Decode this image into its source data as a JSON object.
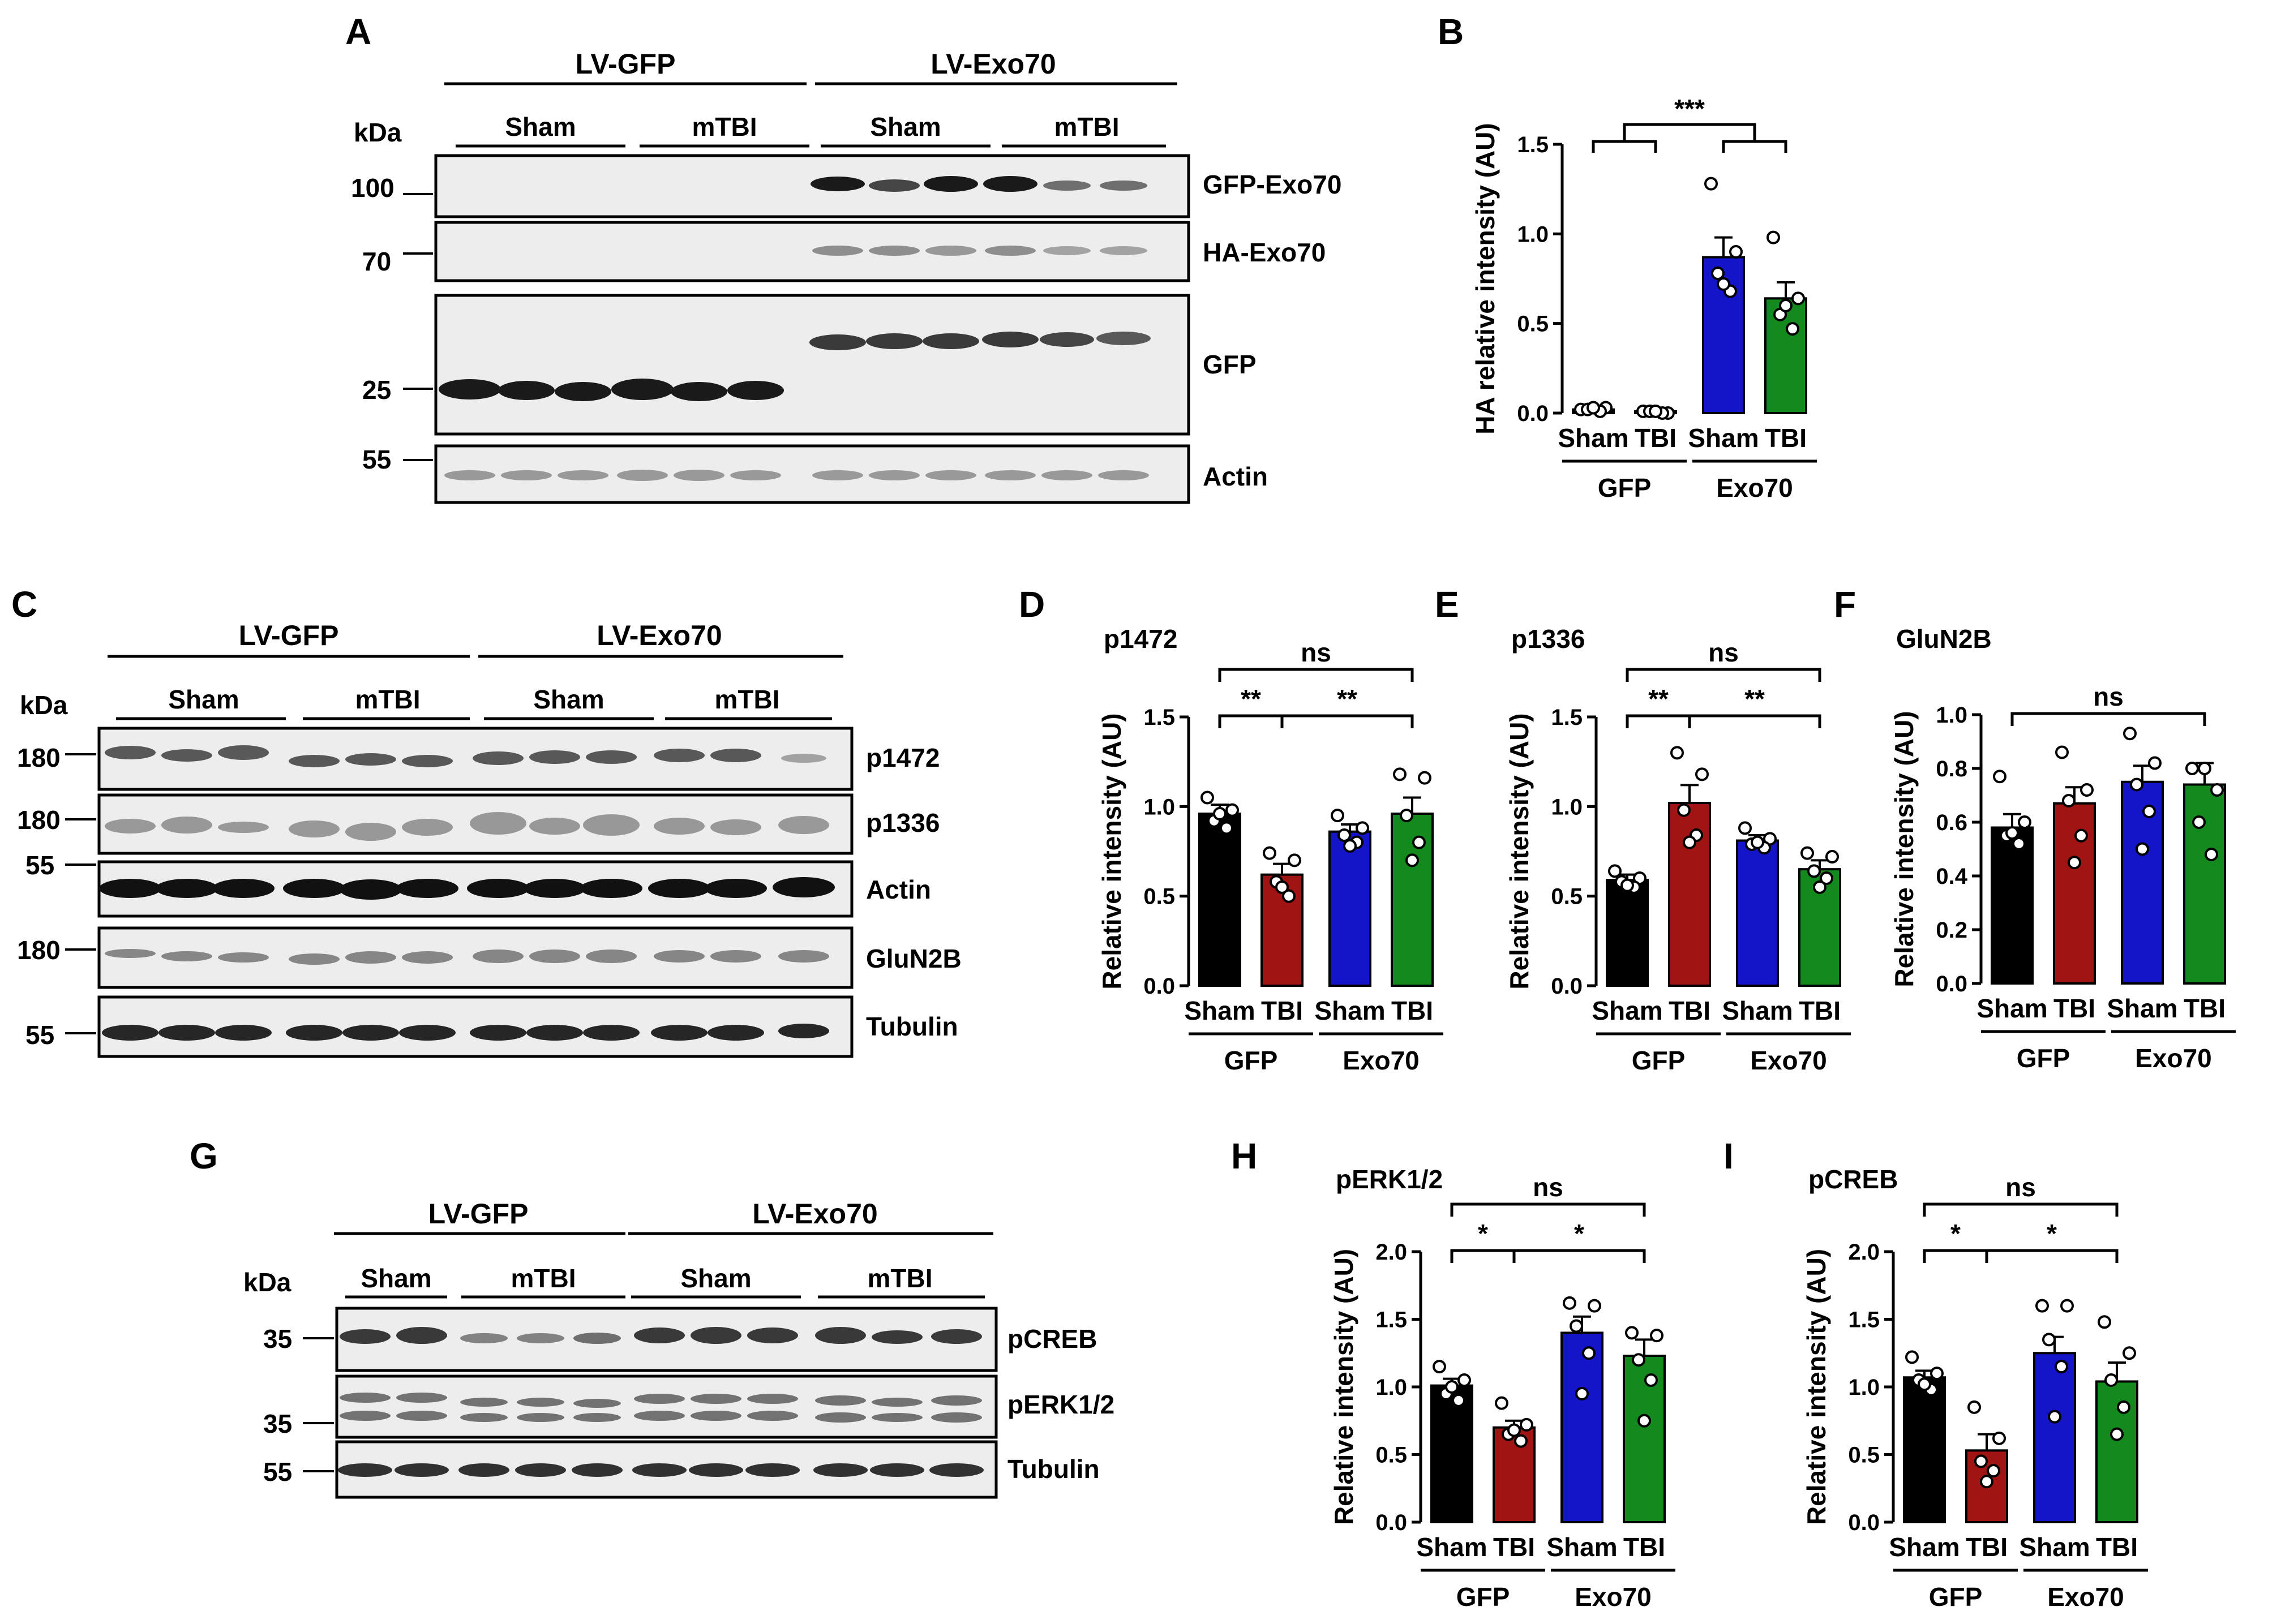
{
  "panels": {
    "A": "A",
    "B": "B",
    "C": "C",
    "D": "D",
    "E": "E",
    "F": "F",
    "G": "G",
    "H": "H",
    "I": "I"
  },
  "blots": {
    "A": {
      "groups": [
        "LV-GFP",
        "LV-Exo70"
      ],
      "conditions": [
        "Sham",
        "mTBI",
        "Sham",
        "mTBI"
      ],
      "kda_label": "kDa",
      "rows": [
        {
          "name": "GFP-Exo70",
          "marker": "100"
        },
        {
          "name": "HA-Exo70",
          "marker": "70"
        },
        {
          "name": "GFP",
          "marker": "25"
        },
        {
          "name": "Actin",
          "marker": "55"
        }
      ]
    },
    "C": {
      "groups": [
        "LV-GFP",
        "LV-Exo70"
      ],
      "conditions": [
        "Sham",
        "mTBI",
        "Sham",
        "mTBI"
      ],
      "kda_label": "kDa",
      "rows": [
        {
          "name": "p1472",
          "marker": "180"
        },
        {
          "name": "p1336",
          "marker": "180"
        },
        {
          "name": "Actin",
          "marker": "55"
        },
        {
          "name": "GluN2B",
          "marker": "180"
        },
        {
          "name": "Tubulin",
          "marker": "55"
        }
      ]
    },
    "G": {
      "groups": [
        "LV-GFP",
        "LV-Exo70"
      ],
      "conditions": [
        "Sham",
        "mTBI",
        "Sham",
        "mTBI"
      ],
      "kda_label": "kDa",
      "rows": [
        {
          "name": "pCREB",
          "marker": "35"
        },
        {
          "name": "pERK1/2",
          "marker": "35"
        },
        {
          "name": "Tubulin",
          "marker": "55"
        }
      ]
    }
  },
  "colors": {
    "sham_gfp": "#000000",
    "tbi_gfp": "#a01414",
    "sham_exo70": "#1414c8",
    "tbi_exo70": "#148a1e"
  },
  "chart_data": [
    {
      "panel": "B",
      "type": "bar",
      "title": "",
      "ylabel": "HA relative intensity (AU)",
      "ylim": [
        0,
        1.5
      ],
      "yticks": [
        "0.0",
        "0.5",
        "1.0",
        "1.5"
      ],
      "categories": [
        "Sham",
        "TBI",
        "Sham",
        "TBI"
      ],
      "groups": [
        "GFP",
        "Exo70"
      ],
      "values": [
        0.02,
        0.01,
        0.87,
        0.64
      ],
      "errors": [
        0.01,
        0.005,
        0.11,
        0.09
      ],
      "points": [
        [
          0.02,
          0.03,
          0.02,
          0.01,
          0.03
        ],
        [
          0.01,
          0.0,
          0.01,
          0.0,
          0.01
        ],
        [
          1.28,
          0.9,
          0.78,
          0.68,
          0.72
        ],
        [
          0.98,
          0.64,
          0.55,
          0.47,
          0.6
        ]
      ],
      "significance": [
        {
          "label": "***",
          "type": "group-bracket"
        }
      ]
    },
    {
      "panel": "D",
      "type": "bar",
      "title": "p1472",
      "ylabel": "Relative intensity (AU)",
      "ylim": [
        0,
        1.5
      ],
      "yticks": [
        "0.0",
        "0.5",
        "1.0",
        "1.5"
      ],
      "categories": [
        "Sham",
        "TBI",
        "Sham",
        "TBI"
      ],
      "groups": [
        "GFP",
        "Exo70"
      ],
      "values": [
        0.96,
        0.62,
        0.86,
        0.96
      ],
      "errors": [
        0.05,
        0.06,
        0.04,
        0.09
      ],
      "points": [
        [
          1.05,
          0.98,
          0.92,
          0.88,
          0.96
        ],
        [
          0.74,
          0.7,
          0.58,
          0.5,
          0.55
        ],
        [
          0.95,
          0.88,
          0.84,
          0.8,
          0.78
        ],
        [
          1.18,
          1.16,
          0.95,
          0.8,
          0.7
        ]
      ],
      "significance": [
        {
          "label": "ns",
          "from": 0,
          "to": 3,
          "level": 1
        },
        {
          "label": "**",
          "from": 0,
          "to": 1,
          "level": 0
        },
        {
          "label": "**",
          "from": 1,
          "to": 3,
          "level": 0
        }
      ]
    },
    {
      "panel": "E",
      "type": "bar",
      "title": "p1336",
      "ylabel": "Relative intensity (AU)",
      "ylim": [
        0,
        1.5
      ],
      "yticks": [
        "0.0",
        "0.5",
        "1.0",
        "1.5"
      ],
      "categories": [
        "Sham",
        "TBI",
        "Sham",
        "TBI"
      ],
      "groups": [
        "GFP",
        "Exo70"
      ],
      "values": [
        0.59,
        1.02,
        0.81,
        0.65
      ],
      "errors": [
        0.03,
        0.1,
        0.03,
        0.05
      ],
      "points": [
        [
          0.64,
          0.6,
          0.58,
          0.55,
          0.56
        ],
        [
          1.3,
          1.18,
          0.98,
          0.84,
          0.8
        ],
        [
          0.88,
          0.82,
          0.79,
          0.77,
          0.8
        ],
        [
          0.74,
          0.72,
          0.64,
          0.6,
          0.55
        ]
      ],
      "significance": [
        {
          "label": "ns",
          "from": 0,
          "to": 3,
          "level": 1
        },
        {
          "label": "**",
          "from": 0,
          "to": 1,
          "level": 0
        },
        {
          "label": "**",
          "from": 1,
          "to": 3,
          "level": 0
        }
      ]
    },
    {
      "panel": "F",
      "type": "bar",
      "title": "GluN2B",
      "ylabel": "Relative intensity (AU)",
      "ylim": [
        0,
        1.0
      ],
      "yticks": [
        "0.0",
        "0.2",
        "0.4",
        "0.6",
        "0.8",
        "1.0"
      ],
      "categories": [
        "Sham",
        "TBI",
        "Sham",
        "TBI"
      ],
      "groups": [
        "GFP",
        "Exo70"
      ],
      "values": [
        0.58,
        0.67,
        0.75,
        0.74
      ],
      "errors": [
        0.05,
        0.06,
        0.06,
        0.08
      ],
      "points": [
        [
          0.77,
          0.6,
          0.55,
          0.52,
          0.56
        ],
        [
          0.86,
          0.72,
          0.68,
          0.55,
          0.45
        ],
        [
          0.93,
          0.82,
          0.74,
          0.64,
          0.5
        ],
        [
          0.8,
          0.72,
          0.6,
          0.48,
          0.8
        ]
      ],
      "significance": [
        {
          "label": "ns",
          "from": 0,
          "to": 3,
          "level": 0
        }
      ]
    },
    {
      "panel": "H",
      "type": "bar",
      "title": "pERK1/2",
      "ylabel": "Relative intensity (AU)",
      "ylim": [
        0,
        2.0
      ],
      "yticks": [
        "0.0",
        "0.5",
        "1.0",
        "1.5",
        "2.0"
      ],
      "categories": [
        "Sham",
        "TBI",
        "Sham",
        "TBI"
      ],
      "groups": [
        "GFP",
        "Exo70"
      ],
      "values": [
        1.01,
        0.7,
        1.4,
        1.23
      ],
      "errors": [
        0.05,
        0.05,
        0.12,
        0.12
      ],
      "points": [
        [
          1.15,
          1.05,
          0.95,
          0.9,
          1.0
        ],
        [
          0.88,
          0.72,
          0.65,
          0.6,
          0.68
        ],
        [
          1.62,
          1.6,
          1.45,
          1.25,
          0.95
        ],
        [
          1.4,
          1.38,
          1.2,
          1.05,
          0.75
        ]
      ],
      "significance": [
        {
          "label": "ns",
          "from": 0,
          "to": 3,
          "level": 1
        },
        {
          "label": "*",
          "from": 0,
          "to": 1,
          "level": 0
        },
        {
          "label": "*",
          "from": 1,
          "to": 3,
          "level": 0
        }
      ]
    },
    {
      "panel": "I",
      "type": "bar",
      "title": "pCREB",
      "ylabel": "Relative intensity (AU)",
      "ylim": [
        0,
        2.0
      ],
      "yticks": [
        "0.0",
        "0.5",
        "1.0",
        "1.5",
        "2.0"
      ],
      "categories": [
        "Sham",
        "TBI",
        "Sham",
        "TBI"
      ],
      "groups": [
        "GFP",
        "Exo70"
      ],
      "values": [
        1.07,
        0.53,
        1.25,
        1.04
      ],
      "errors": [
        0.05,
        0.12,
        0.12,
        0.14
      ],
      "points": [
        [
          1.22,
          1.1,
          1.05,
          0.98,
          1.02
        ],
        [
          0.85,
          0.62,
          0.45,
          0.38,
          0.3
        ],
        [
          1.6,
          1.6,
          1.35,
          1.15,
          0.78
        ],
        [
          1.48,
          1.25,
          1.05,
          0.85,
          0.65
        ]
      ],
      "significance": [
        {
          "label": "ns",
          "from": 0,
          "to": 3,
          "level": 1
        },
        {
          "label": "*",
          "from": 0,
          "to": 1,
          "level": 0
        },
        {
          "label": "*",
          "from": 1,
          "to": 3,
          "level": 0
        }
      ]
    }
  ]
}
